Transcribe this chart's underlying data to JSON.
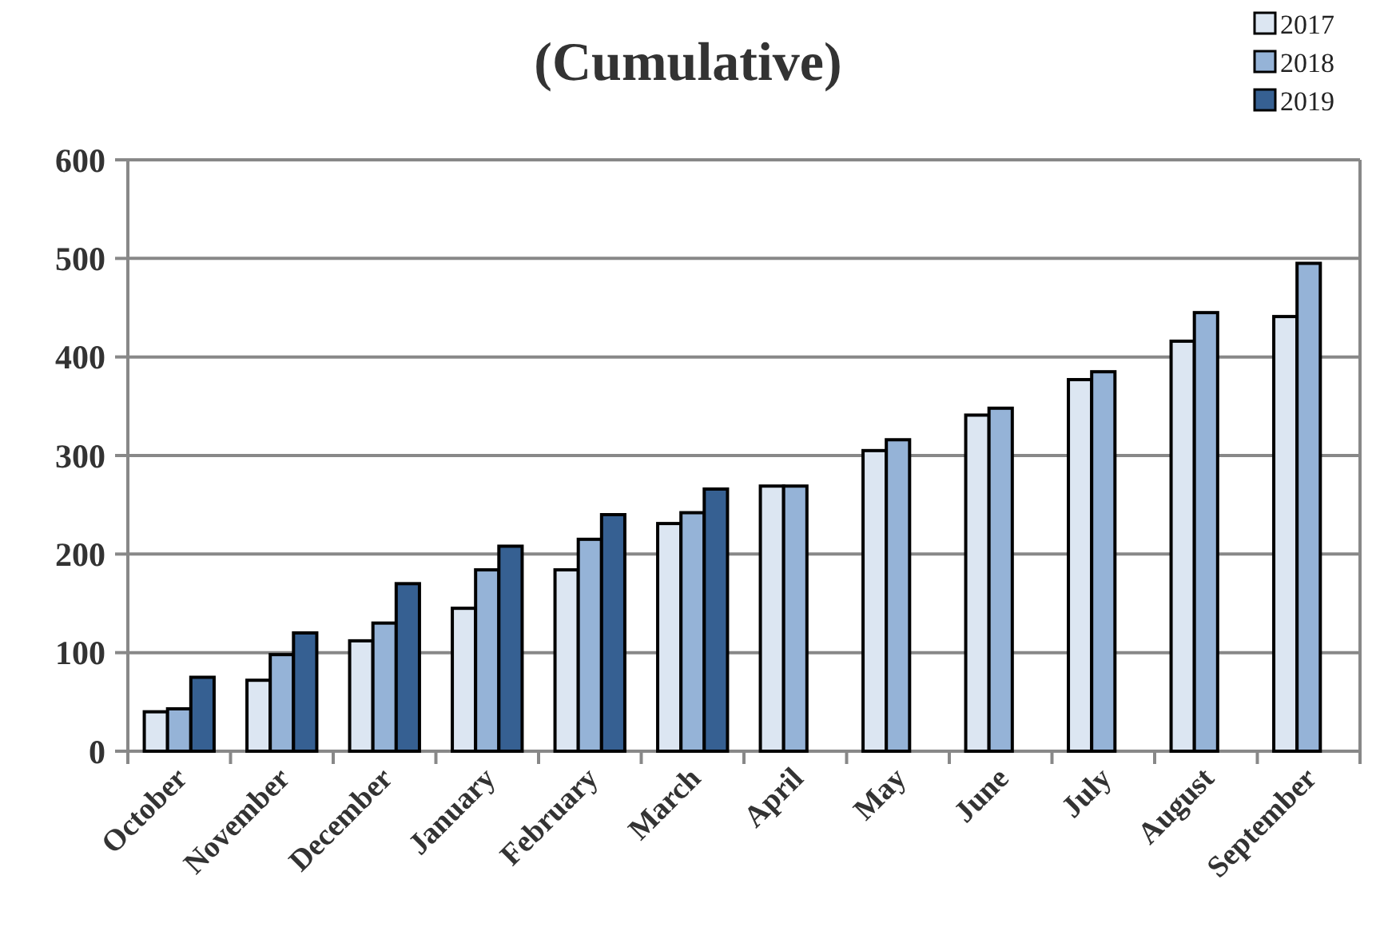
{
  "chart_data": {
    "type": "bar",
    "title": "(Cumulative)",
    "categories": [
      "October",
      "November",
      "December",
      "January",
      "February",
      "March",
      "April",
      "May",
      "June",
      "July",
      "August",
      "September"
    ],
    "series": [
      {
        "name": "2017",
        "color": "#dce6f2",
        "values": [
          40,
          72,
          112,
          145,
          184,
          231,
          269,
          305,
          341,
          377,
          416,
          441
        ]
      },
      {
        "name": "2018",
        "color": "#95b3d7",
        "values": [
          43,
          98,
          130,
          184,
          215,
          242,
          269,
          316,
          348,
          385,
          445,
          495
        ]
      },
      {
        "name": "2019",
        "color": "#366092",
        "values": [
          75,
          120,
          170,
          208,
          240,
          266,
          null,
          null,
          null,
          null,
          null,
          null
        ]
      }
    ],
    "ylim": [
      0,
      600
    ],
    "yticks": [
      0,
      100,
      200,
      300,
      400,
      500,
      600
    ],
    "grid": "y",
    "legend": "top right"
  }
}
